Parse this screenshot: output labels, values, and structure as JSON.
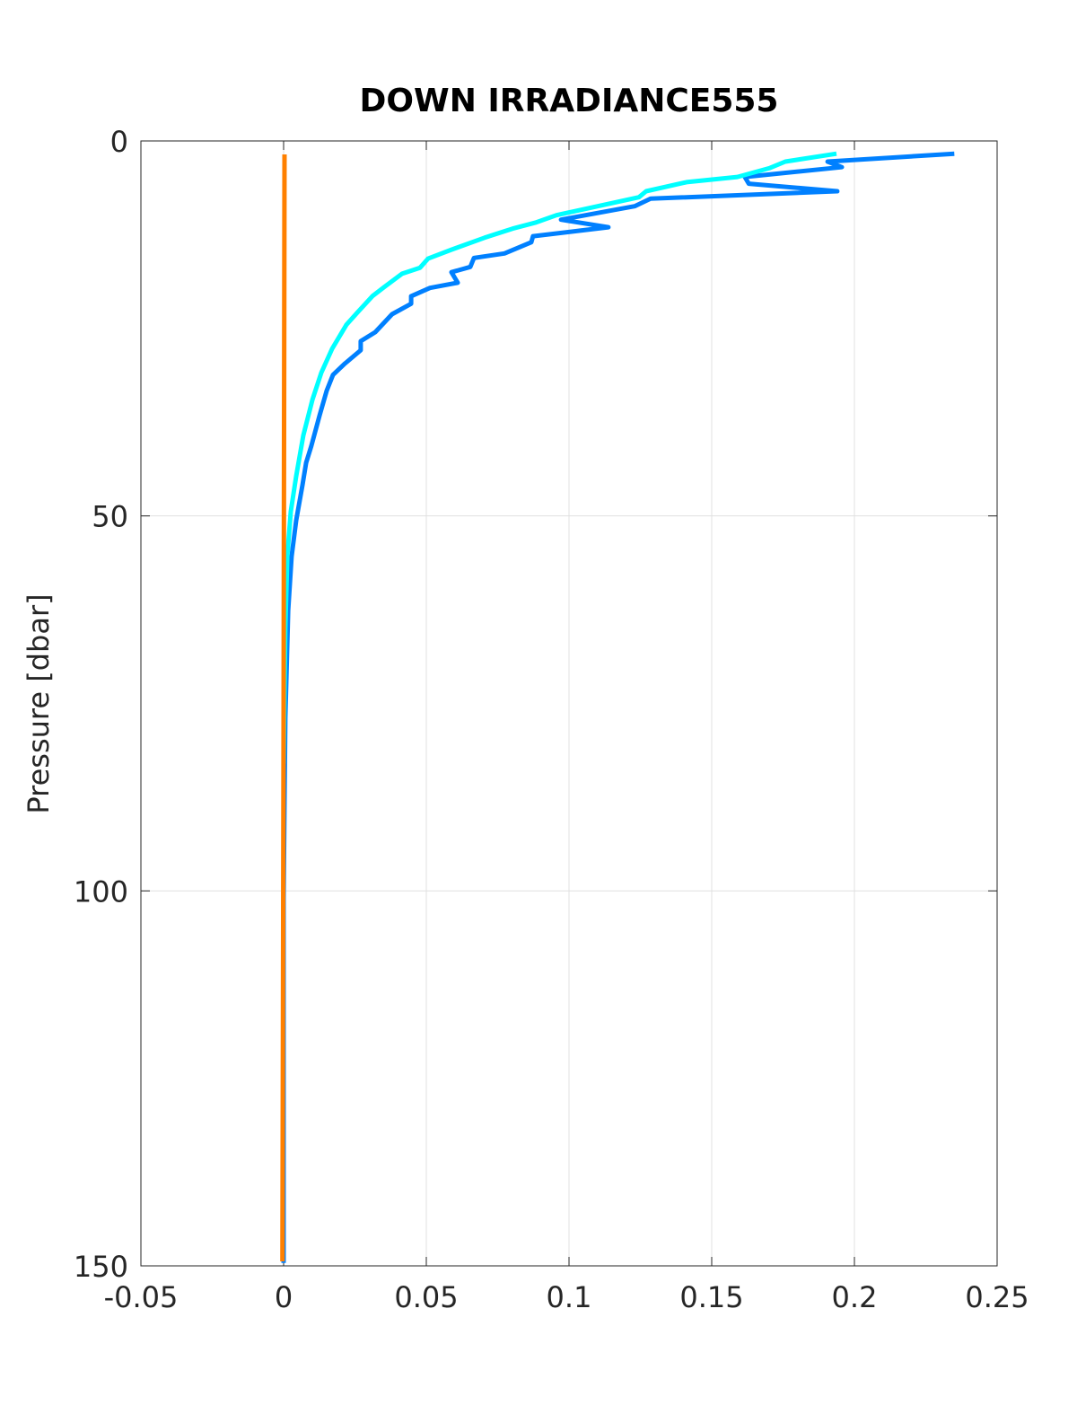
{
  "chart_data": {
    "type": "line",
    "title": "DOWN IRRADIANCE555",
    "y_label": "Pressure [dbar]",
    "xlim": [
      -0.05,
      0.25
    ],
    "xticks": [
      -0.05,
      0,
      0.05,
      0.1,
      0.15,
      0.2,
      0.25
    ],
    "ylim": [
      0,
      150
    ],
    "yticks": [
      0,
      50,
      100,
      150
    ],
    "y_reversed": true,
    "grid": true,
    "series": [
      {
        "color": "#0080ff",
        "x": [
          0.235,
          0.1906,
          0.1956,
          0.1616,
          0.163,
          0.194,
          0.1286,
          0.123,
          0.0972,
          0.1138,
          0.0874,
          0.0868,
          0.0774,
          0.0667,
          0.0654,
          0.0588,
          0.061,
          0.0513,
          0.0447,
          0.0447,
          0.038,
          0.0321,
          0.027,
          0.027,
          0.0214,
          0.0173,
          0.0151,
          0.0126,
          0.0097,
          0.0079,
          0.0066,
          0.0044,
          0.0028,
          0.0016,
          0.0006,
          0,
          0
        ],
        "y": [
          1.7,
          2.75,
          3.5,
          4.8,
          5.7,
          6.7,
          7.7,
          8.7,
          10.5,
          11.5,
          12.7,
          13.5,
          15,
          15.6,
          16.8,
          17.5,
          18.9,
          19.6,
          20.7,
          21.7,
          23.1,
          25.5,
          26.7,
          27.9,
          29.7,
          31.2,
          33.3,
          36.6,
          40.7,
          42.9,
          45.9,
          50.6,
          55.4,
          62.6,
          77,
          101,
          149.6
        ]
      },
      {
        "color": "#00ffff",
        "x": [
          0.1937,
          0.1758,
          0.1704,
          0.159,
          0.1412,
          0.127,
          0.1245,
          0.0956,
          0.0881,
          0.0802,
          0.0704,
          0.0588,
          0.0506,
          0.0478,
          0.0415,
          0.0352,
          0.0311,
          0.0258,
          0.022,
          0.017,
          0.0132,
          0.0101,
          0.0069,
          0.0044,
          0.0025,
          0.0013,
          0.0006,
          0
        ],
        "y": [
          1.7,
          2.75,
          3.6,
          4.8,
          5.5,
          6.7,
          7.5,
          9.9,
          10.9,
          11.7,
          12.9,
          14.5,
          15.7,
          16.9,
          17.7,
          19.5,
          20.7,
          22.9,
          24.5,
          27.7,
          30.9,
          34.5,
          39.3,
          44.7,
          49.4,
          55.4,
          65,
          83
        ]
      },
      {
        "color": "#ff8000",
        "x": [
          0.0003,
          0,
          -0.0004
        ],
        "y": [
          1.8,
          75,
          149.4
        ]
      }
    ]
  }
}
